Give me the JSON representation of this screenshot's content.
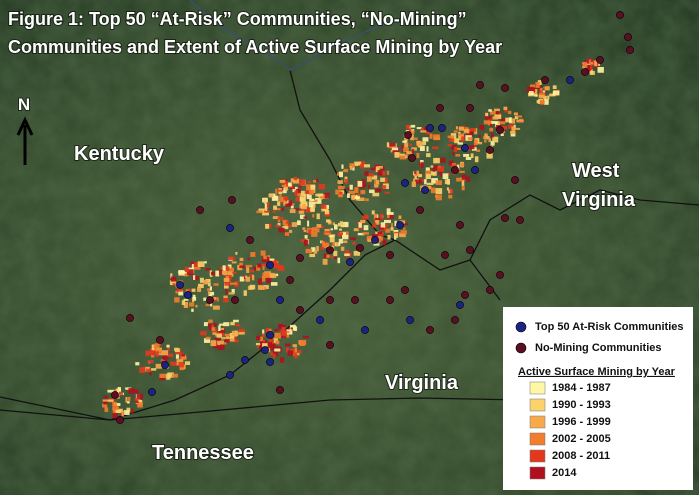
{
  "title": [
    "Figure 1: Top 50 “At-Risk” Communities, “No-Mining”",
    "Communities and Extent of Active Surface Mining by Year"
  ],
  "north_label": "N",
  "states": {
    "kentucky": "Kentucky",
    "west_virginia": [
      "West",
      "Virginia"
    ],
    "virginia": "Virginia",
    "tennessee": "Tennessee"
  },
  "legend": {
    "points": [
      {
        "label": "Top 50 At-Risk Communities",
        "color": "#1c2382"
      },
      {
        "label": "No-Mining Communities",
        "color": "#5a0f22"
      }
    ],
    "mining_title": "Active Surface Mining by Year",
    "mining": [
      {
        "label": "1984 - 1987",
        "color": "#fff6a6"
      },
      {
        "label": "1990 - 1993",
        "color": "#fcd26a"
      },
      {
        "label": "1996 - 1999",
        "color": "#f8a94a"
      },
      {
        "label": "2002 - 2005",
        "color": "#f27d2c"
      },
      {
        "label": "2008 - 2011",
        "color": "#e2381e"
      },
      {
        "label": "2014",
        "color": "#b0101e"
      }
    ]
  }
}
